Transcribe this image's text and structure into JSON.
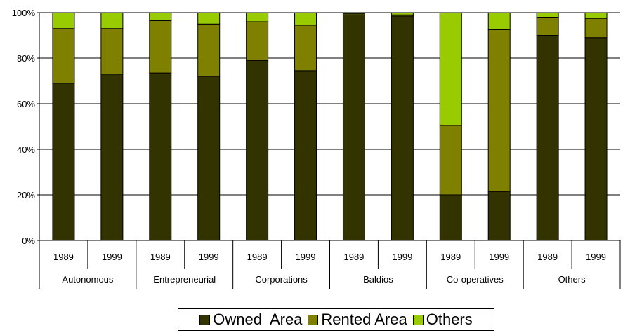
{
  "chart_data": {
    "type": "bar",
    "stacked": true,
    "percent": true,
    "ylim": [
      0,
      100
    ],
    "yticks": [
      "0%",
      "20%",
      "40%",
      "60%",
      "80%",
      "100%"
    ],
    "grid": true,
    "legend_position": "bottom",
    "groups": [
      {
        "name": "Autonomous",
        "years": [
          "1989",
          "1999"
        ]
      },
      {
        "name": "Entrepreneurial",
        "years": [
          "1989",
          "1999"
        ]
      },
      {
        "name": "Corporations",
        "years": [
          "1989",
          "1999"
        ]
      },
      {
        "name": "Baldios",
        "years": [
          "1989",
          "1999"
        ]
      },
      {
        "name": "Co-operatives",
        "years": [
          "1989",
          "1999"
        ]
      },
      {
        "name": "Others",
        "years": [
          "1989",
          "1999"
        ]
      }
    ],
    "series": [
      {
        "name": "Owned  Area",
        "color": "#333300",
        "values": [
          69,
          73,
          73.5,
          72,
          79,
          74.5,
          99,
          98.5,
          20,
          21.5,
          90,
          89
        ]
      },
      {
        "name": "Rented Area",
        "color": "#808000",
        "values": [
          24,
          20,
          23,
          23,
          17,
          20,
          0.5,
          0.5,
          30.5,
          71,
          8,
          8.5
        ]
      },
      {
        "name": "Others",
        "color": "#99cc00",
        "values": [
          7,
          7,
          3.5,
          5,
          4,
          5.5,
          0.5,
          1,
          49.5,
          7.5,
          2,
          2.5
        ]
      }
    ]
  }
}
